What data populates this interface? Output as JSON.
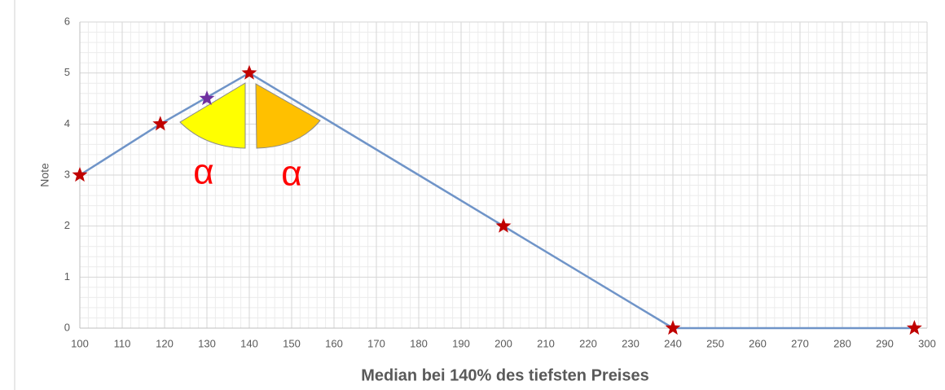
{
  "chart_data": {
    "type": "line",
    "x_label": "Median bei 140% des tiefsten Preises",
    "y_label": "Note",
    "annotations": [
      "α",
      "α"
    ],
    "xlim": [
      100,
      300
    ],
    "xticks": [
      100,
      110,
      120,
      130,
      140,
      150,
      160,
      170,
      180,
      190,
      200,
      210,
      220,
      230,
      240,
      250,
      260,
      270,
      280,
      290,
      300
    ],
    "ylim": [
      0,
      6
    ],
    "yticks": [
      0,
      1,
      2,
      3,
      4,
      5,
      6
    ],
    "grid": true,
    "series": [
      {
        "color": "#6f94c8",
        "marker_color": "#c00000",
        "x": [
          100,
          119,
          140,
          200,
          240,
          297
        ],
        "values": [
          3,
          4,
          5,
          2,
          0,
          0
        ]
      },
      {
        "color": "#7030a0",
        "marker_color": "#7030a0",
        "line": false,
        "x": [
          130
        ],
        "values": [
          4.5
        ]
      }
    ]
  }
}
